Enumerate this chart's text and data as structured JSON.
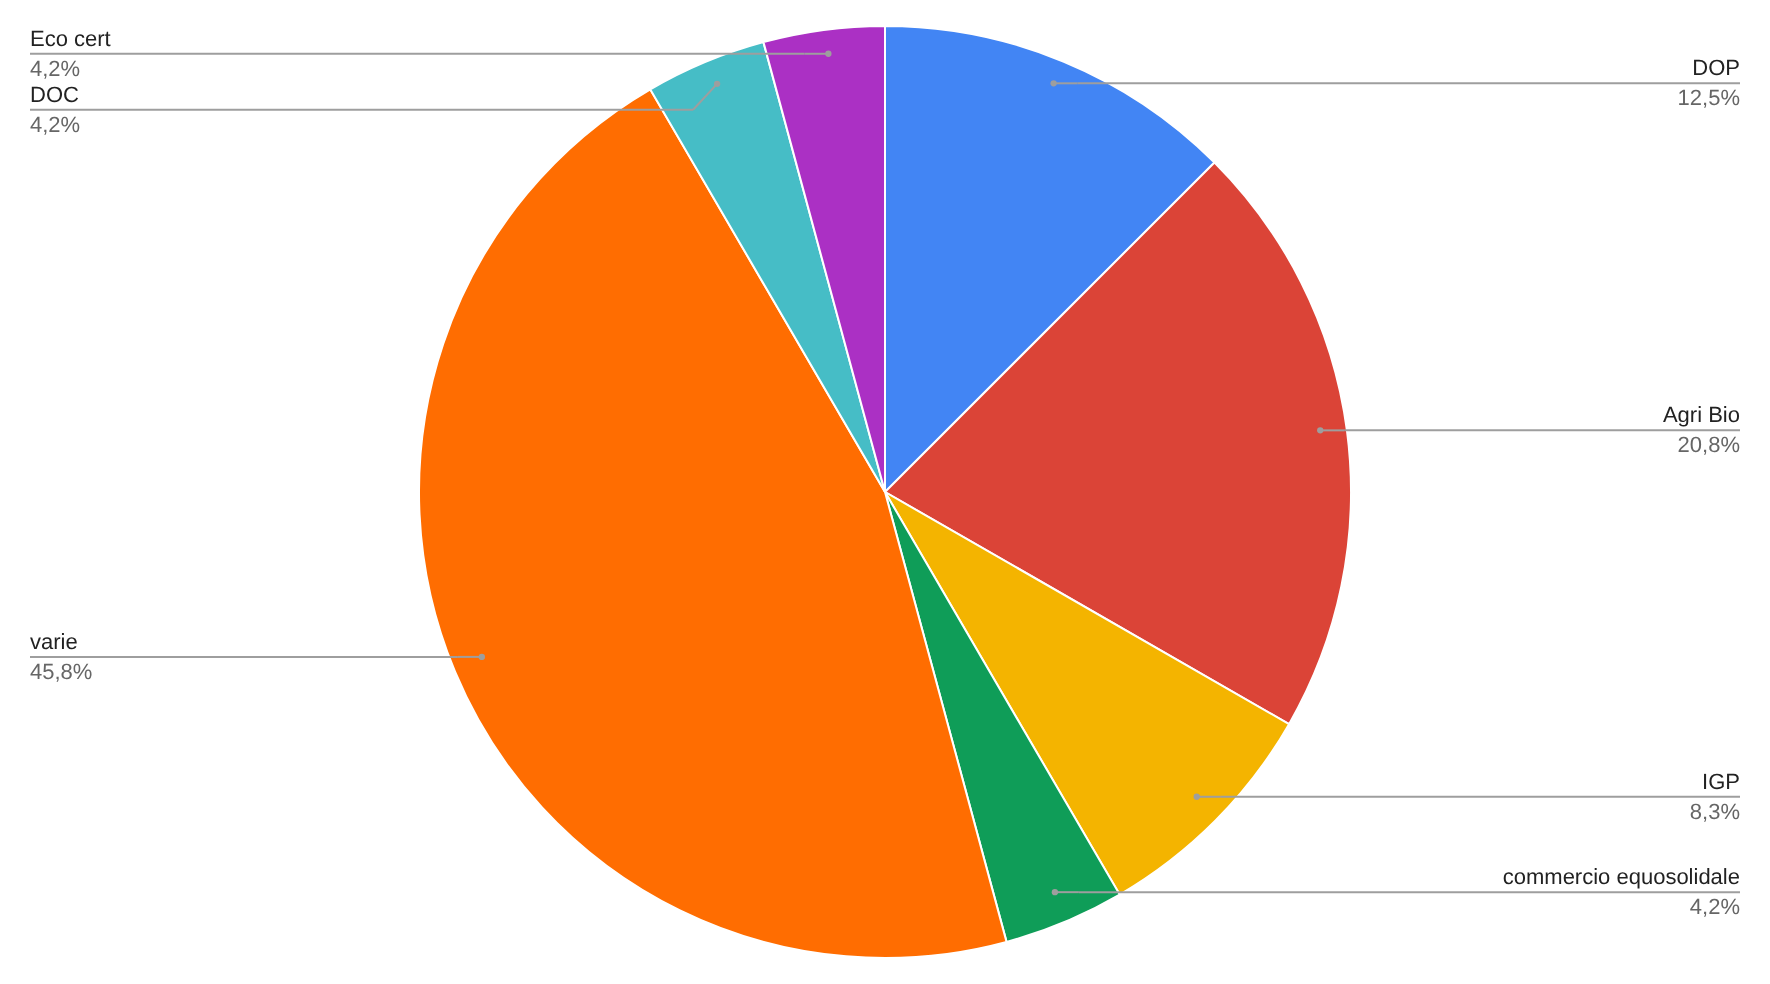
{
  "chart_data": {
    "type": "pie",
    "categories": [
      "DOP",
      "Agri Bio",
      "IGP",
      "commercio equosolidale",
      "varie",
      "DOC",
      "Eco cert"
    ],
    "values": [
      12.5,
      20.8,
      8.3,
      4.2,
      45.8,
      4.2,
      4.2
    ],
    "value_labels": [
      "12,5%",
      "20,8%",
      "8,3%",
      "4,2%",
      "45,8%",
      "4,2%",
      "4,2%"
    ],
    "colors": [
      "#4285f4",
      "#db4437",
      "#f4b400",
      "#0f9d58",
      "#ff6d01",
      "#46bdc6",
      "#ab30c4"
    ]
  }
}
